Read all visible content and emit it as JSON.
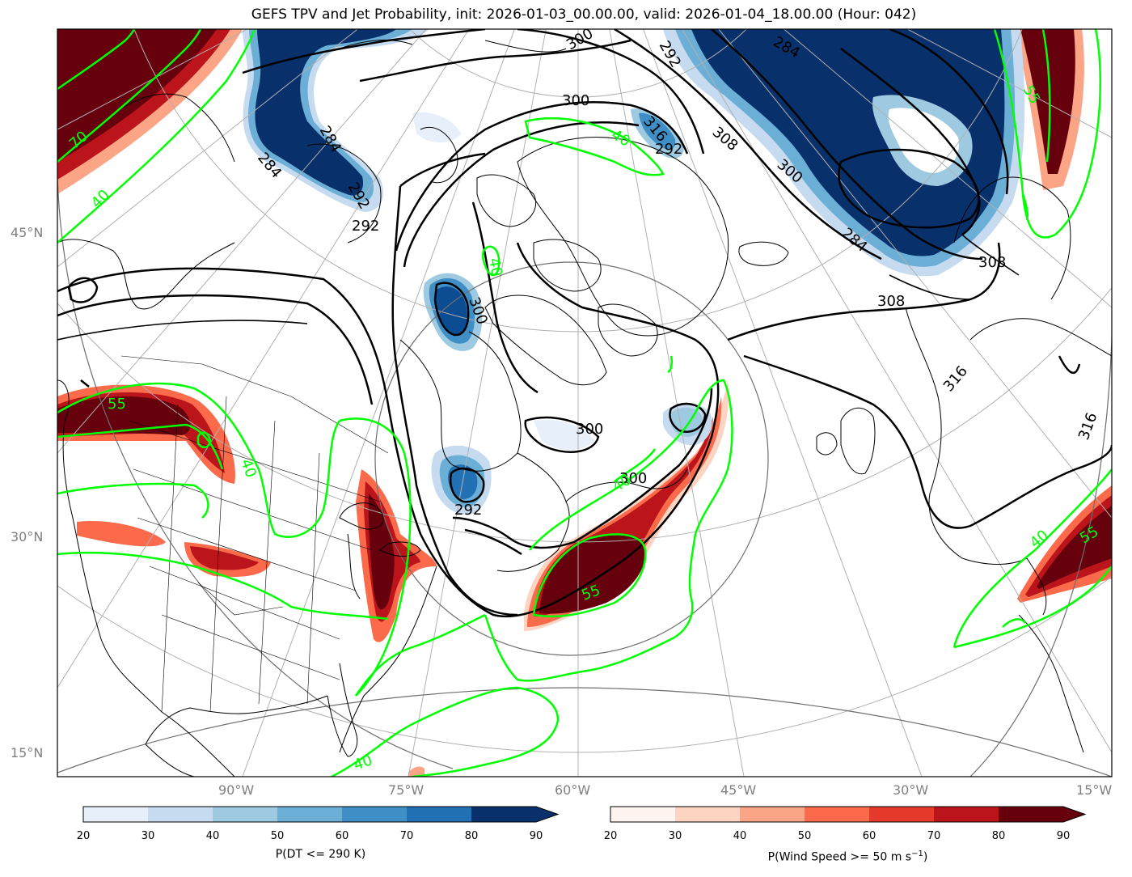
{
  "title": "GEFS TPV and Jet Probability, init: 2026-01-03_00.00.00, valid: 2026-01-04_18.00.00 (Hour: 042)",
  "lat_labels": [
    "45°N",
    "30°N",
    "15°N"
  ],
  "lon_labels": [
    "90°W",
    "75°W",
    "60°W",
    "45°W",
    "30°W",
    "15°W"
  ],
  "contour_labels": {
    "theta": [
      "300",
      "316",
      "292",
      "284",
      "308",
      "300",
      "292",
      "284",
      "308",
      "316",
      "292",
      "284",
      "300",
      "284",
      "292",
      "300",
      "300",
      "292",
      "300",
      "316",
      "308"
    ],
    "wind": [
      "70",
      "40",
      "40",
      "55",
      "40",
      "40",
      "55",
      "40",
      "55",
      "40",
      "40",
      "55"
    ]
  },
  "colorbars": {
    "blue": {
      "label": "P(DT <= 290 K)",
      "ticks": [
        "20",
        "30",
        "40",
        "50",
        "60",
        "70",
        "80",
        "90"
      ],
      "colors": [
        "#e7f0fa",
        "#c6dbef",
        "#9ecae1",
        "#6baed6",
        "#3f8fc6",
        "#2271b5",
        "#0b4c92",
        "#08306b"
      ]
    },
    "red": {
      "label": "P(Wind Speed >= 50 m s",
      "label_sup": "−1",
      "label_end": ")",
      "ticks": [
        "20",
        "30",
        "40",
        "50",
        "60",
        "70",
        "80",
        "90"
      ],
      "colors": [
        "#fff5f0",
        "#fdd3c1",
        "#fca486",
        "#fb6b4b",
        "#e63a2c",
        "#bb141a",
        "#8a0c14",
        "#67000d"
      ]
    }
  },
  "colors": {
    "theta_contour": "#000000",
    "wind_contour": "#00ff00",
    "grid": "#b0b0b0",
    "axis_label": "#7f7f7f"
  }
}
